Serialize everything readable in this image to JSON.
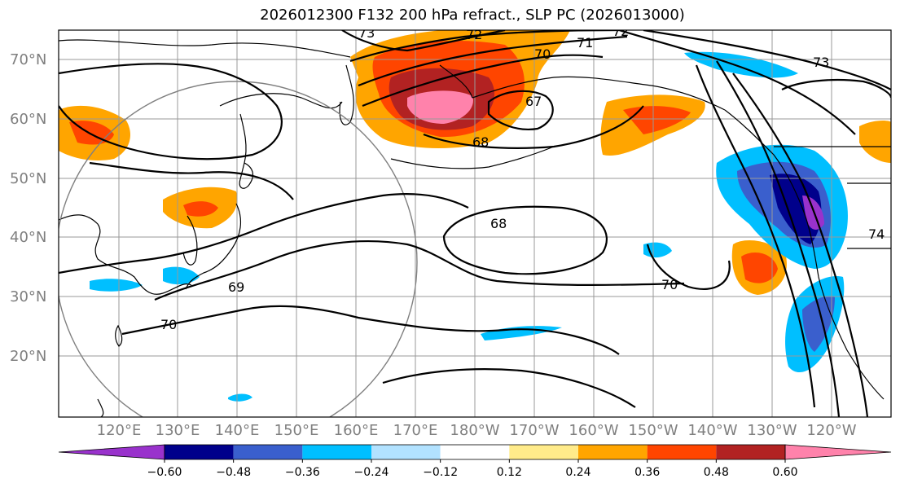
{
  "title": "2026012300 F132 200 hPa refract., SLP PC (2026013000)",
  "lat_ticks": [
    "70°N",
    "60°N",
    "50°N",
    "40°N",
    "30°N",
    "20°N"
  ],
  "lon_ticks": [
    "120°E",
    "130°E",
    "140°E",
    "150°E",
    "160°E",
    "170°E",
    "180°W",
    "170°W",
    "160°W",
    "150°W",
    "140°W",
    "130°W",
    "120°W"
  ],
  "colorbar": {
    "ticks": [
      "−0.60",
      "−0.48",
      "−0.36",
      "−0.24",
      "−0.12",
      "0.12",
      "0.24",
      "0.36",
      "0.48",
      "0.60"
    ],
    "colors": [
      "#9932cc",
      "#00008b",
      "#3a5fcd",
      "#00bfff",
      "#b2e2ff",
      "#ffffff",
      "#ffeb8a",
      "#ffa500",
      "#ff4500",
      "#b22222",
      "#ff82ab"
    ]
  },
  "contour_labels": [
    "73",
    "72",
    "72",
    "71",
    "70",
    "67",
    "68",
    "68",
    "69",
    "70",
    "70",
    "73",
    "74"
  ]
}
